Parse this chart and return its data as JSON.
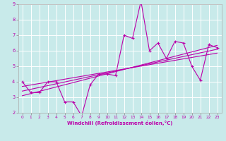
{
  "xlabel": "Windchill (Refroidissement éolien,°C)",
  "ylabel": "",
  "bg_color": "#c8eaea",
  "grid_color": "#ffffff",
  "line_color": "#bb00aa",
  "xlim": [
    -0.5,
    23.5
  ],
  "ylim": [
    2,
    9
  ],
  "xticks": [
    0,
    1,
    2,
    3,
    4,
    5,
    6,
    7,
    8,
    9,
    10,
    11,
    12,
    13,
    14,
    15,
    16,
    17,
    18,
    19,
    20,
    21,
    22,
    23
  ],
  "yticks": [
    2,
    3,
    4,
    5,
    6,
    7,
    8,
    9
  ],
  "scatter_x": [
    0,
    1,
    2,
    3,
    4,
    5,
    6,
    7,
    8,
    9,
    10,
    11,
    12,
    13,
    14,
    15,
    16,
    17,
    18,
    19,
    20,
    21,
    22,
    23
  ],
  "scatter_y": [
    4.0,
    3.3,
    3.3,
    4.0,
    4.0,
    2.7,
    2.7,
    1.8,
    3.8,
    4.5,
    4.5,
    4.4,
    7.0,
    6.8,
    9.2,
    6.0,
    6.5,
    5.5,
    6.6,
    6.5,
    5.0,
    4.1,
    6.4,
    6.2
  ],
  "trend1_x": [
    0,
    23
  ],
  "trend1_y": [
    3.1,
    6.35
  ],
  "trend2_x": [
    0,
    23
  ],
  "trend2_y": [
    3.4,
    6.1
  ],
  "trend3_x": [
    0,
    23
  ],
  "trend3_y": [
    3.7,
    5.85
  ]
}
